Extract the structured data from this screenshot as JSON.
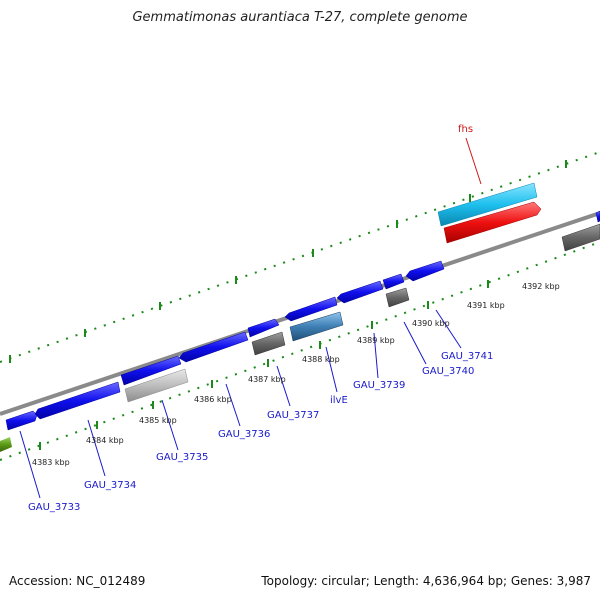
{
  "title": "Gemmatimonas aurantiaca T-27, complete genome",
  "footer": {
    "accession": "Accession: NC_012489",
    "summary": "Topology: circular; Length: 4,636,964 bp; Genes: 3,987"
  },
  "colors": {
    "backbone": "#8a8a8a",
    "gene_blue": "#1010ee",
    "gene_gray": "#666666",
    "gene_lightgray": "#bdbdbd",
    "gene_steel": "#3f7fb4",
    "gene_cyan": "#1ec0ee",
    "gene_red": "#ee1010",
    "gene_olive": "#5b9a16",
    "tick": "#1a8a1a",
    "label_blue": "#1a1acc",
    "label_red": "#cc1a1a"
  },
  "scale_labels": [
    "4383 kbp",
    "4384 kbp",
    "4385 kbp",
    "4386 kbp",
    "4387 kbp",
    "4388 kbp",
    "4389 kbp",
    "4390 kbp",
    "4391 kbp",
    "4392 kbp"
  ],
  "gene_labels": [
    "GAU_3733",
    "GAU_3734",
    "GAU_3735",
    "GAU_3736",
    "GAU_3737",
    "ilvE",
    "GAU_3739",
    "GAU_3740",
    "GAU_3741",
    "fhs"
  ]
}
